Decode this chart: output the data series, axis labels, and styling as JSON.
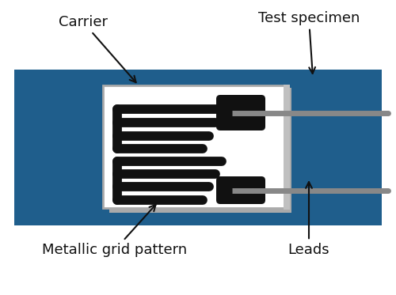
{
  "bg_color": "#ffffff",
  "blue_color": "#1f5e8c",
  "white_color": "#ffffff",
  "black_color": "#111111",
  "gray_color": "#888888",
  "light_gray": "#b0b0b0",
  "figsize": [
    5.0,
    3.73
  ],
  "dpi": 100,
  "labels": {
    "carrier": "Carrier",
    "test_specimen": "Test specimen",
    "metallic_grid": "Metallic grid pattern",
    "leads": "Leads"
  }
}
